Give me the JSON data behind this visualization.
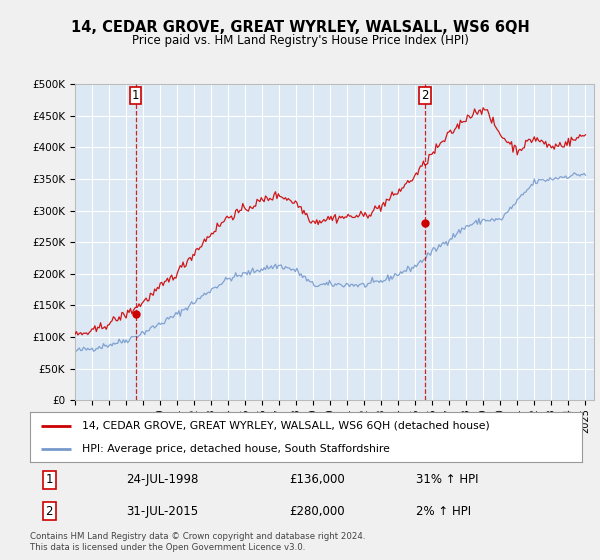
{
  "title": "14, CEDAR GROVE, GREAT WYRLEY, WALSALL, WS6 6QH",
  "subtitle": "Price paid vs. HM Land Registry's House Price Index (HPI)",
  "ylabel_ticks": [
    0,
    50000,
    100000,
    150000,
    200000,
    250000,
    300000,
    350000,
    400000,
    450000,
    500000
  ],
  "ylabel_labels": [
    "£0",
    "£50K",
    "£100K",
    "£150K",
    "£200K",
    "£250K",
    "£300K",
    "£350K",
    "£400K",
    "£450K",
    "£500K"
  ],
  "ylim": [
    0,
    500000
  ],
  "xlim_start": 1995.0,
  "xlim_end": 2025.5,
  "purchase1_year": 1998.56,
  "purchase1_price": 136000,
  "purchase1_label": "1",
  "purchase1_date": "24-JUL-1998",
  "purchase1_hpi_pct": "31% ↑ HPI",
  "purchase2_year": 2015.58,
  "purchase2_price": 280000,
  "purchase2_label": "2",
  "purchase2_date": "31-JUL-2015",
  "purchase2_hpi_pct": "2% ↑ HPI",
  "line_color_red": "#cc0000",
  "line_color_blue": "#7799cc",
  "vline_color": "#cc0000",
  "plot_bg": "#dce9f5",
  "fig_bg": "#f0f0f0",
  "grid_color": "#ffffff",
  "legend_label_red": "14, CEDAR GROVE, GREAT WYRLEY, WALSALL, WS6 6QH (detached house)",
  "legend_label_blue": "HPI: Average price, detached house, South Staffordshire",
  "footer": "Contains HM Land Registry data © Crown copyright and database right 2024.\nThis data is licensed under the Open Government Licence v3.0.",
  "xtick_years": [
    1995,
    1996,
    1997,
    1998,
    1999,
    2000,
    2001,
    2002,
    2003,
    2004,
    2005,
    2006,
    2007,
    2008,
    2009,
    2010,
    2011,
    2012,
    2013,
    2014,
    2015,
    2016,
    2017,
    2018,
    2019,
    2020,
    2021,
    2022,
    2023,
    2024,
    2025
  ],
  "hpi_anchors_x": [
    1995,
    1996,
    1997,
    1998,
    1999,
    2000,
    2001,
    2002,
    2003,
    2004,
    2005,
    2006,
    2007,
    2008,
    2009,
    2010,
    2011,
    2012,
    2013,
    2014,
    2015,
    2016,
    2017,
    2018,
    2019,
    2020,
    2021,
    2022,
    2023,
    2024,
    2025
  ],
  "hpi_anchors_y": [
    78000,
    82000,
    88000,
    95000,
    107000,
    121000,
    136000,
    155000,
    175000,
    192000,
    200000,
    208000,
    213000,
    205000,
    182000,
    183000,
    183000,
    182000,
    188000,
    200000,
    212000,
    235000,
    255000,
    275000,
    285000,
    285000,
    315000,
    345000,
    350000,
    355000,
    358000
  ],
  "red_anchors_x": [
    1995,
    1996,
    1997,
    1998,
    1999,
    2000,
    2001,
    2002,
    2003,
    2004,
    2005,
    2006,
    2007,
    2008,
    2009,
    2010,
    2011,
    2012,
    2013,
    2014,
    2015,
    2016,
    2017,
    2018,
    2019,
    2020,
    2021,
    2022,
    2023,
    2024,
    2025
  ],
  "red_anchors_y": [
    103000,
    108000,
    122000,
    136000,
    155000,
    178000,
    202000,
    233000,
    264000,
    290000,
    302000,
    316000,
    325000,
    312000,
    282000,
    288000,
    290000,
    292000,
    307000,
    330000,
    355000,
    390000,
    420000,
    447000,
    463000,
    420000,
    395000,
    415000,
    400000,
    408000,
    420000
  ],
  "noise_seed": 42,
  "noise_hpi": 2500,
  "noise_red": 3500
}
